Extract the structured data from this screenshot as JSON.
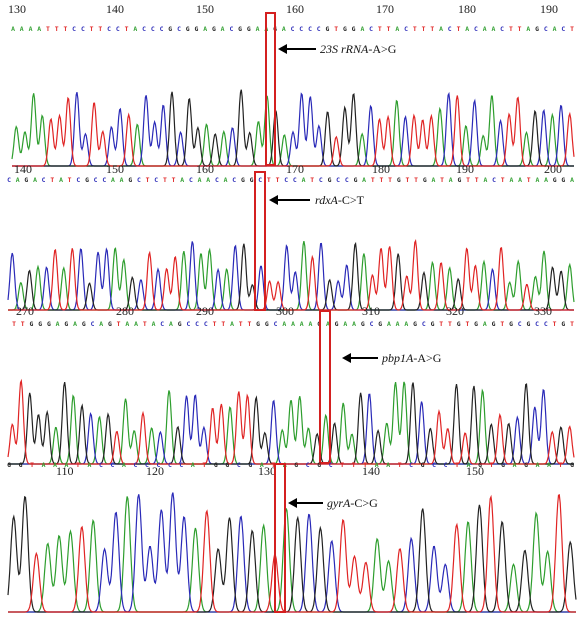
{
  "colors": {
    "A": "#2e9e2e",
    "C": "#2a2ab8",
    "G": "#222222",
    "T": "#e02424",
    "highlight": "#d42020",
    "arrow": "#000000"
  },
  "panels": [
    {
      "ticks": [
        "130",
        "140",
        "150",
        "160",
        "170",
        "180",
        "190"
      ],
      "sequence": "AAAATTTCCTTCCTACCCGCGGAGACGGAAGACCCCGTGGACTTACTTTACTACAACTTAGCACT",
      "mutation": "23S rRNA-A>G",
      "gene": "23S rRNA",
      "change": "-A>G"
    },
    {
      "ticks": [
        "140",
        "150",
        "160",
        "170",
        "180",
        "190",
        "200"
      ],
      "sequence": "CAGACTATCGCCAAGCTCTTACAACACGGCTTCCATCGCCGATTTGTTGATAGTTACTAATAAGGA",
      "mutation": "rdxA-C>T",
      "gene": "rdxA",
      "change": "-C>T"
    },
    {
      "ticks": [
        "270",
        "280",
        "290",
        "300",
        "310",
        "320",
        "330"
      ],
      "sequence": "TTGGGAGAGCAGTAATACAGCCCTTATTGGCAAAAGAGAAGCGAAAGCGTTGTGAGTGCGCCTGT",
      "mutation": "pbp1A-A>G",
      "gene": "pbp1A",
      "change": "-A>G"
    },
    {
      "ticks": [
        "110",
        "120",
        "130",
        "140",
        "150"
      ],
      "sequence": "GGTAAATACCACCCCCATGGCGATAGCGCTTTAATCGCCTAGTGAGAATG",
      "mutation": "gyrA-C>G",
      "gene": "gyrA",
      "change": "-C>G"
    }
  ]
}
